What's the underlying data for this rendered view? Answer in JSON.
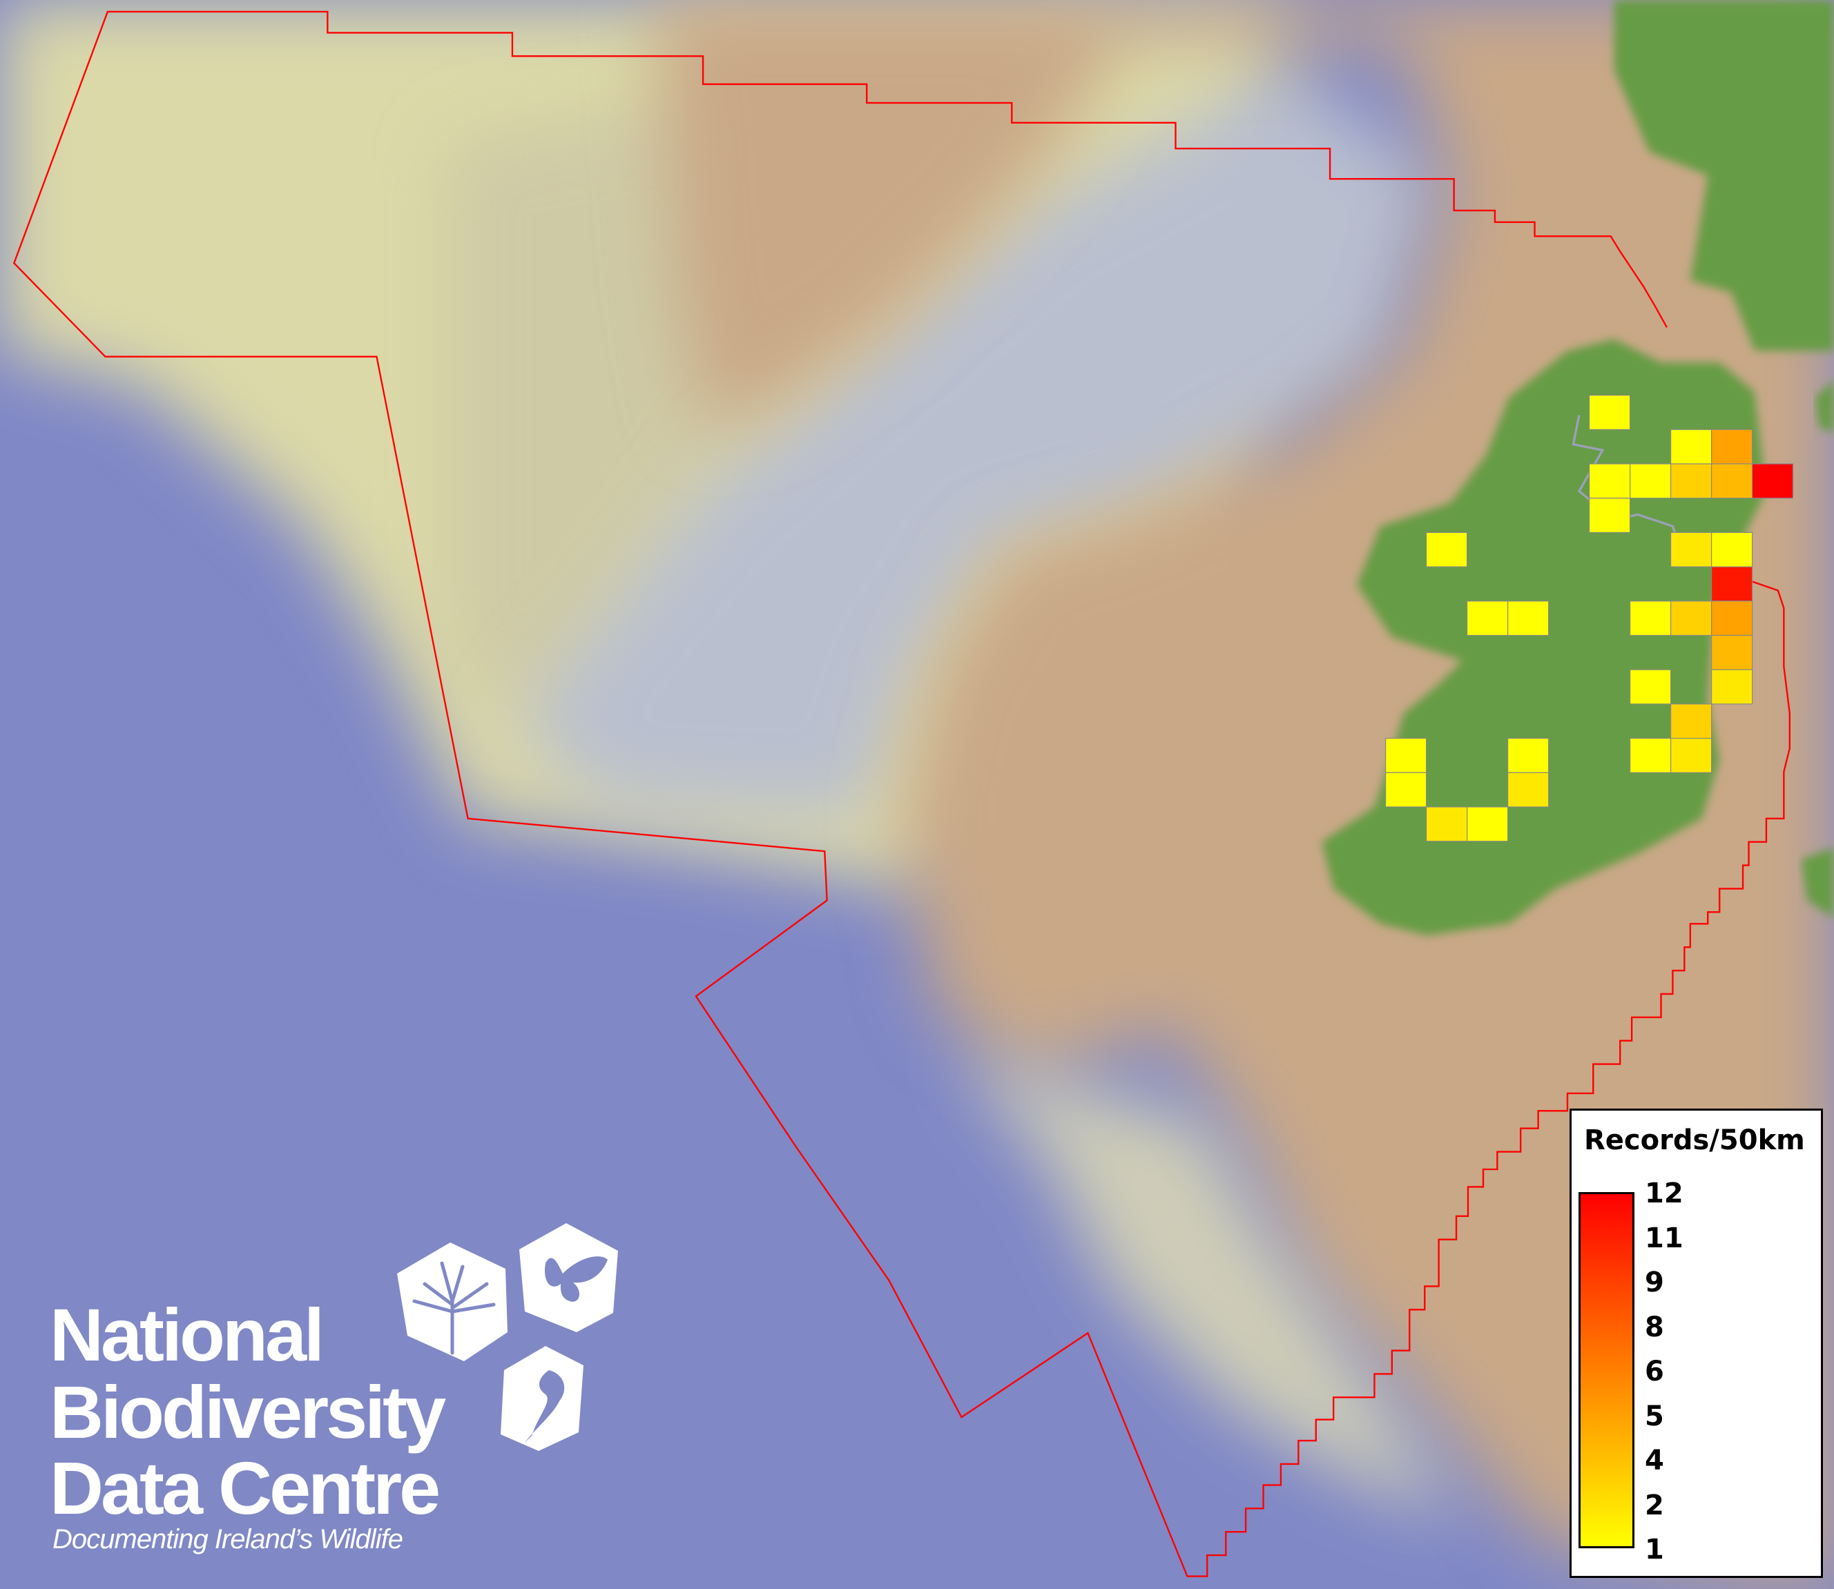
{
  "map": {
    "colors": {
      "ocean": "#8088c6",
      "shelf": "#dcd9a8",
      "bay": "#b9bfcf",
      "land_plain": "#c9a887",
      "land_green": "#669c44",
      "boundary": "#ff0000",
      "cell_low": "#ffff00",
      "cell_high": "#ff0000",
      "cell_border": "#888888"
    },
    "grid_cells": [
      {
        "grid_row": 0,
        "grid_col": 5,
        "records": 1
      },
      {
        "grid_row": 1,
        "grid_col": 7,
        "records": 1
      },
      {
        "grid_row": 1,
        "grid_col": 8,
        "records": 5
      },
      {
        "grid_row": 2,
        "grid_col": 5,
        "records": 1
      },
      {
        "grid_row": 2,
        "grid_col": 6,
        "records": 1
      },
      {
        "grid_row": 2,
        "grid_col": 7,
        "records": 3
      },
      {
        "grid_row": 2,
        "grid_col": 8,
        "records": 4
      },
      {
        "grid_row": 2,
        "grid_col": 9,
        "records": 12
      },
      {
        "grid_row": 3,
        "grid_col": 5,
        "records": 1
      },
      {
        "grid_row": 4,
        "grid_col": 1,
        "records": 1
      },
      {
        "grid_row": 4,
        "grid_col": 7,
        "records": 2
      },
      {
        "grid_row": 4,
        "grid_col": 8,
        "records": 1
      },
      {
        "grid_row": 5,
        "grid_col": 8,
        "records": 11
      },
      {
        "grid_row": 6,
        "grid_col": 2,
        "records": 1
      },
      {
        "grid_row": 6,
        "grid_col": 3,
        "records": 1
      },
      {
        "grid_row": 6,
        "grid_col": 6,
        "records": 1
      },
      {
        "grid_row": 6,
        "grid_col": 7,
        "records": 3
      },
      {
        "grid_row": 6,
        "grid_col": 8,
        "records": 5
      },
      {
        "grid_row": 7,
        "grid_col": 8,
        "records": 4
      },
      {
        "grid_row": 8,
        "grid_col": 6,
        "records": 1
      },
      {
        "grid_row": 8,
        "grid_col": 8,
        "records": 2
      },
      {
        "grid_row": 9,
        "grid_col": 7,
        "records": 3
      },
      {
        "grid_row": 10,
        "grid_col": 0,
        "records": 1
      },
      {
        "grid_row": 10,
        "grid_col": 3,
        "records": 1
      },
      {
        "grid_row": 10,
        "grid_col": 6,
        "records": 1
      },
      {
        "grid_row": 10,
        "grid_col": 7,
        "records": 2
      },
      {
        "grid_row": 11,
        "grid_col": 0,
        "records": 1
      },
      {
        "grid_row": 11,
        "grid_col": 3,
        "records": 2
      },
      {
        "grid_row": 12,
        "grid_col": 1,
        "records": 2
      },
      {
        "grid_row": 12,
        "grid_col": 2,
        "records": 1
      }
    ]
  },
  "legend": {
    "title": "Records/50km",
    "min": 1,
    "max": 12,
    "ticks": [
      "12",
      "11",
      "9",
      "8",
      "6",
      "5",
      "4",
      "2",
      "1"
    ]
  },
  "logo": {
    "line1": "National",
    "line2": "Biodiversity",
    "line3": "Data Centre",
    "tagline": "Documenting Ireland’s Wildlife",
    "icons": [
      "tree-icon",
      "butterfly-icon",
      "seahorse-icon"
    ]
  }
}
